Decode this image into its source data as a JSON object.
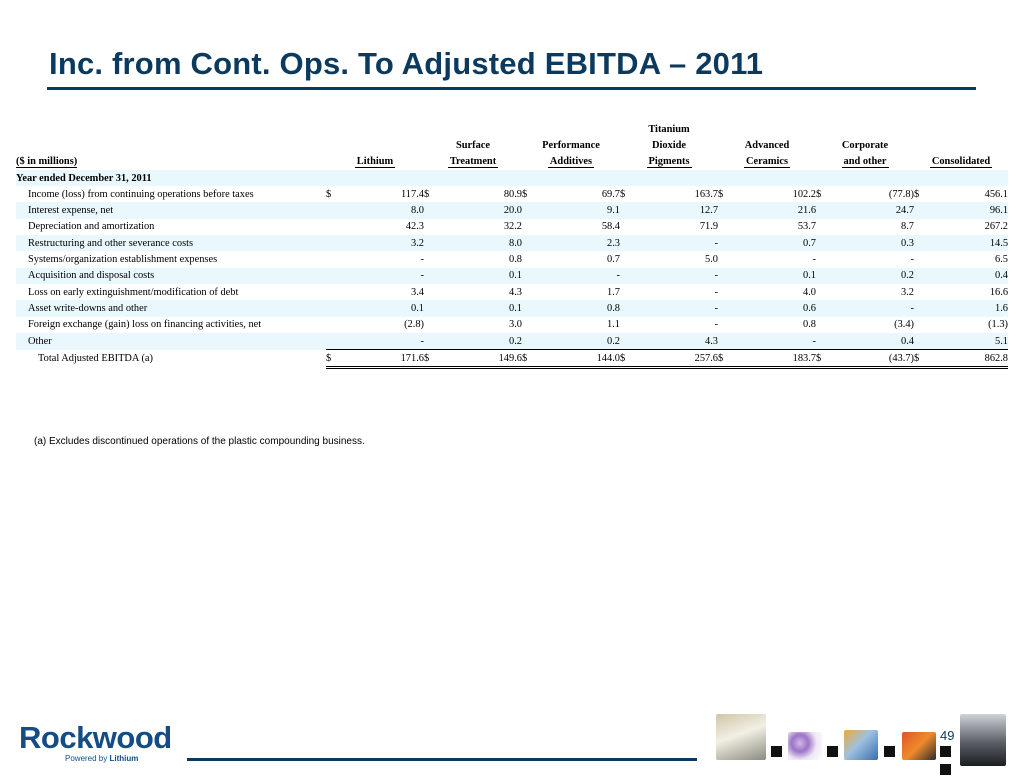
{
  "title": "Inc. from Cont. Ops. To Adjusted EBITDA – 2011",
  "units_label": "($ in millions)",
  "columns": [
    {
      "l1": "",
      "l2": "",
      "l3": "Lithium"
    },
    {
      "l1": "",
      "l2": "Surface",
      "l3": "Treatment"
    },
    {
      "l1": "",
      "l2": "Performance",
      "l3": "Additives"
    },
    {
      "l1": "Titanium",
      "l2": "Dioxide",
      "l3": "Pigments"
    },
    {
      "l1": "",
      "l2": "Advanced",
      "l3": "Ceramics"
    },
    {
      "l1": "",
      "l2": "Corporate",
      "l3": "and other"
    },
    {
      "l1": "",
      "l2": "",
      "l3": "Consolidated"
    }
  ],
  "section_label": "Year ended December 31, 2011",
  "currency_symbol": "$",
  "rows": [
    {
      "label": "Income (loss) from continuing operations before taxes",
      "values": [
        "117.4",
        "80.9",
        "69.7",
        "163.7",
        "102.2",
        "(77.8)",
        "456.1"
      ]
    },
    {
      "label": "Interest expense, net",
      "values": [
        "8.0",
        "20.0",
        "9.1",
        "12.7",
        "21.6",
        "24.7",
        "96.1"
      ]
    },
    {
      "label": "Depreciation and amortization",
      "values": [
        "42.3",
        "32.2",
        "58.4",
        "71.9",
        "53.7",
        "8.7",
        "267.2"
      ]
    },
    {
      "label": "Restructuring and other severance costs",
      "values": [
        "3.2",
        "8.0",
        "2.3",
        "-",
        "0.7",
        "0.3",
        "14.5"
      ]
    },
    {
      "label": "Systems/organization establishment expenses",
      "values": [
        "-",
        "0.8",
        "0.7",
        "5.0",
        "-",
        "-",
        "6.5"
      ]
    },
    {
      "label": "Acquisition and disposal costs",
      "values": [
        "-",
        "0.1",
        "-",
        "-",
        "0.1",
        "0.2",
        "0.4"
      ]
    },
    {
      "label": "Loss on early extinguishment/modification of debt",
      "values": [
        "3.4",
        "4.3",
        "1.7",
        "-",
        "4.0",
        "3.2",
        "16.6"
      ]
    },
    {
      "label": "Asset write-downs and other",
      "values": [
        "0.1",
        "0.1",
        "0.8",
        "-",
        "0.6",
        "-",
        "1.6"
      ]
    },
    {
      "label": "Foreign exchange (gain) loss on financing activities, net",
      "values": [
        "(2.8)",
        "3.0",
        "1.1",
        "-",
        "0.8",
        "(3.4)",
        "(1.3)"
      ]
    },
    {
      "label": "Other",
      "values": [
        "-",
        "0.2",
        "0.2",
        "4.3",
        "-",
        "0.4",
        "5.1"
      ]
    }
  ],
  "total": {
    "label": "Total Adjusted EBITDA (a)",
    "values": [
      "171.6",
      "149.6",
      "144.0",
      "257.6",
      "183.7",
      "(43.7)",
      "862.8"
    ]
  },
  "footnote": "(a) Excludes discontinued operations of the plastic compounding business.",
  "logo": {
    "name": "Rockwood",
    "tagline_prefix": "Powered by",
    "tagline_brand": "Lithium"
  },
  "page_number": "49",
  "colors": {
    "title": "#0b3a5e",
    "band": "#e8f8fc",
    "logo": "#144c86"
  }
}
